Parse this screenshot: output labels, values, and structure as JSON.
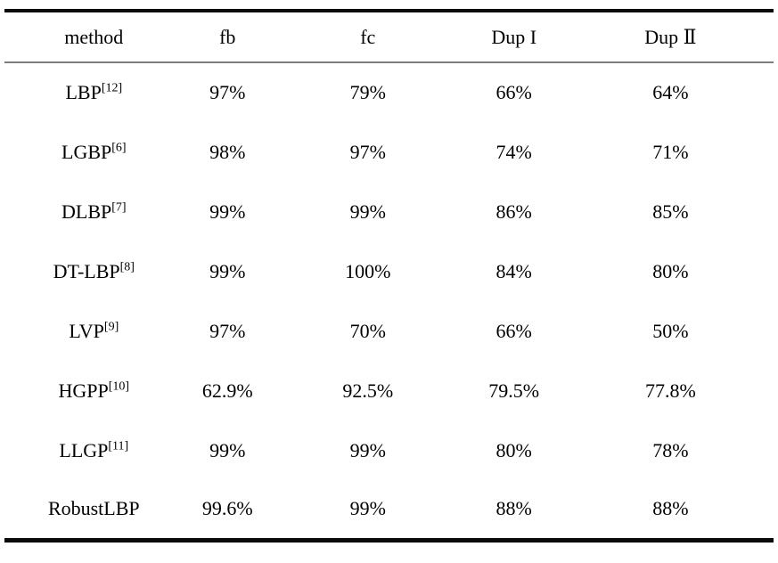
{
  "chart_data": {
    "type": "table",
    "columns": [
      "method",
      "fb",
      "fc",
      "Dup I",
      "Dup Ⅱ"
    ],
    "rows": [
      {
        "method": "LBP",
        "ref": "[12]",
        "values": [
          "97%",
          "79%",
          "66%",
          "64%"
        ]
      },
      {
        "method": "LGBP",
        "ref": "[6]",
        "values": [
          "98%",
          "97%",
          "74%",
          "71%"
        ]
      },
      {
        "method": "DLBP",
        "ref": "[7]",
        "values": [
          "99%",
          "99%",
          "86%",
          "85%"
        ]
      },
      {
        "method": "DT-LBP",
        "ref": "[8]",
        "values": [
          "99%",
          "100%",
          "84%",
          "80%"
        ]
      },
      {
        "method": "LVP",
        "ref": "[9]",
        "values": [
          "97%",
          "70%",
          "66%",
          "50%"
        ]
      },
      {
        "method": "HGPP",
        "ref": "[10]",
        "values": [
          "62.9%",
          "92.5%",
          "79.5%",
          "77.8%"
        ]
      },
      {
        "method": "LLGP",
        "ref": "[11]",
        "values": [
          "99%",
          "99%",
          "80%",
          "78%"
        ]
      },
      {
        "method": "RobustLBP",
        "ref": "",
        "values": [
          "99.6%",
          "99%",
          "88%",
          "88%"
        ]
      }
    ],
    "colors": {
      "rule_heavy": "#0a0a0a",
      "rule_light": "#7d7d7d",
      "text": "#000000",
      "background": "#ffffff"
    },
    "layout": {
      "grid": "horizontal rules only",
      "header_row": true
    }
  }
}
